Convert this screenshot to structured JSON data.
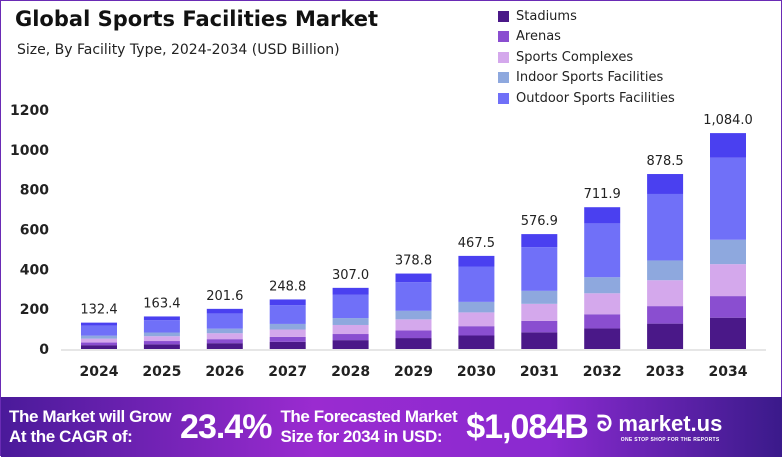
{
  "chart_data": {
    "type": "bar",
    "stacked": true,
    "title": "Global Sports Facilities Market",
    "subtitle": "Size, By Facility Type, 2024-2034 (USD Billion)",
    "categories": [
      "2024",
      "2025",
      "2026",
      "2027",
      "2028",
      "2029",
      "2030",
      "2031",
      "2032",
      "2033",
      "2034"
    ],
    "totals": [
      "132.4",
      "163.4",
      "201.6",
      "248.8",
      "307.0",
      "378.8",
      "467.5",
      "576.9",
      "711.9",
      "878.5",
      "1,084.0"
    ],
    "ylim": [
      0,
      1200
    ],
    "yticks": [
      "0",
      "200",
      "400",
      "600",
      "800",
      "1000",
      "1200"
    ],
    "grid": false,
    "legend_position": "top-right",
    "series": [
      {
        "name": "Stadiums",
        "color": "#4a1888",
        "values": [
          19.2,
          23.7,
          29.2,
          36.1,
          44.5,
          54.9,
          67.8,
          83.7,
          103.2,
          127.4,
          157.2
        ]
      },
      {
        "name": "Arenas",
        "color": "#8a4ed0",
        "values": [
          13.2,
          16.3,
          20.2,
          24.9,
          30.7,
          37.9,
          46.8,
          57.7,
          71.2,
          87.9,
          108.4
        ]
      },
      {
        "name": "Sports Complexes",
        "color": "#d4a8ec",
        "values": [
          19.6,
          24.2,
          29.8,
          36.8,
          45.4,
          56.1,
          69.2,
          85.4,
          105.4,
          130.0,
          160.4
        ]
      },
      {
        "name": "Indoor Sports Facilities",
        "color": "#8ea8de",
        "values": [
          15.0,
          18.5,
          22.8,
          28.1,
          34.7,
          42.8,
          52.8,
          65.2,
          80.4,
          99.3,
          122.5
        ]
      },
      {
        "name": "Outdoor Sports Facilities",
        "color": "#7070f8",
        "values": [
          50.3,
          62.1,
          76.6,
          94.5,
          116.7,
          143.9,
          177.6,
          219.2,
          270.5,
          333.8,
          411.9
        ]
      },
      {
        "color": "#4a40f0",
        "values": [
          15.1,
          18.6,
          23.0,
          28.4,
          35.0,
          43.2,
          53.3,
          65.7,
          81.2,
          100.1,
          123.6
        ]
      }
    ]
  },
  "footer": {
    "cagr_label_1": "The Market will Grow",
    "cagr_label_2": "At the CAGR of:",
    "cagr_value": "23.4%",
    "forecast_label_1": "The Forecasted Market",
    "forecast_label_2": "Size for 2034 in USD:",
    "forecast_value": "$1,084B",
    "brand": "market.us",
    "tagline": "ONE STOP SHOP FOR THE REPORTS"
  }
}
